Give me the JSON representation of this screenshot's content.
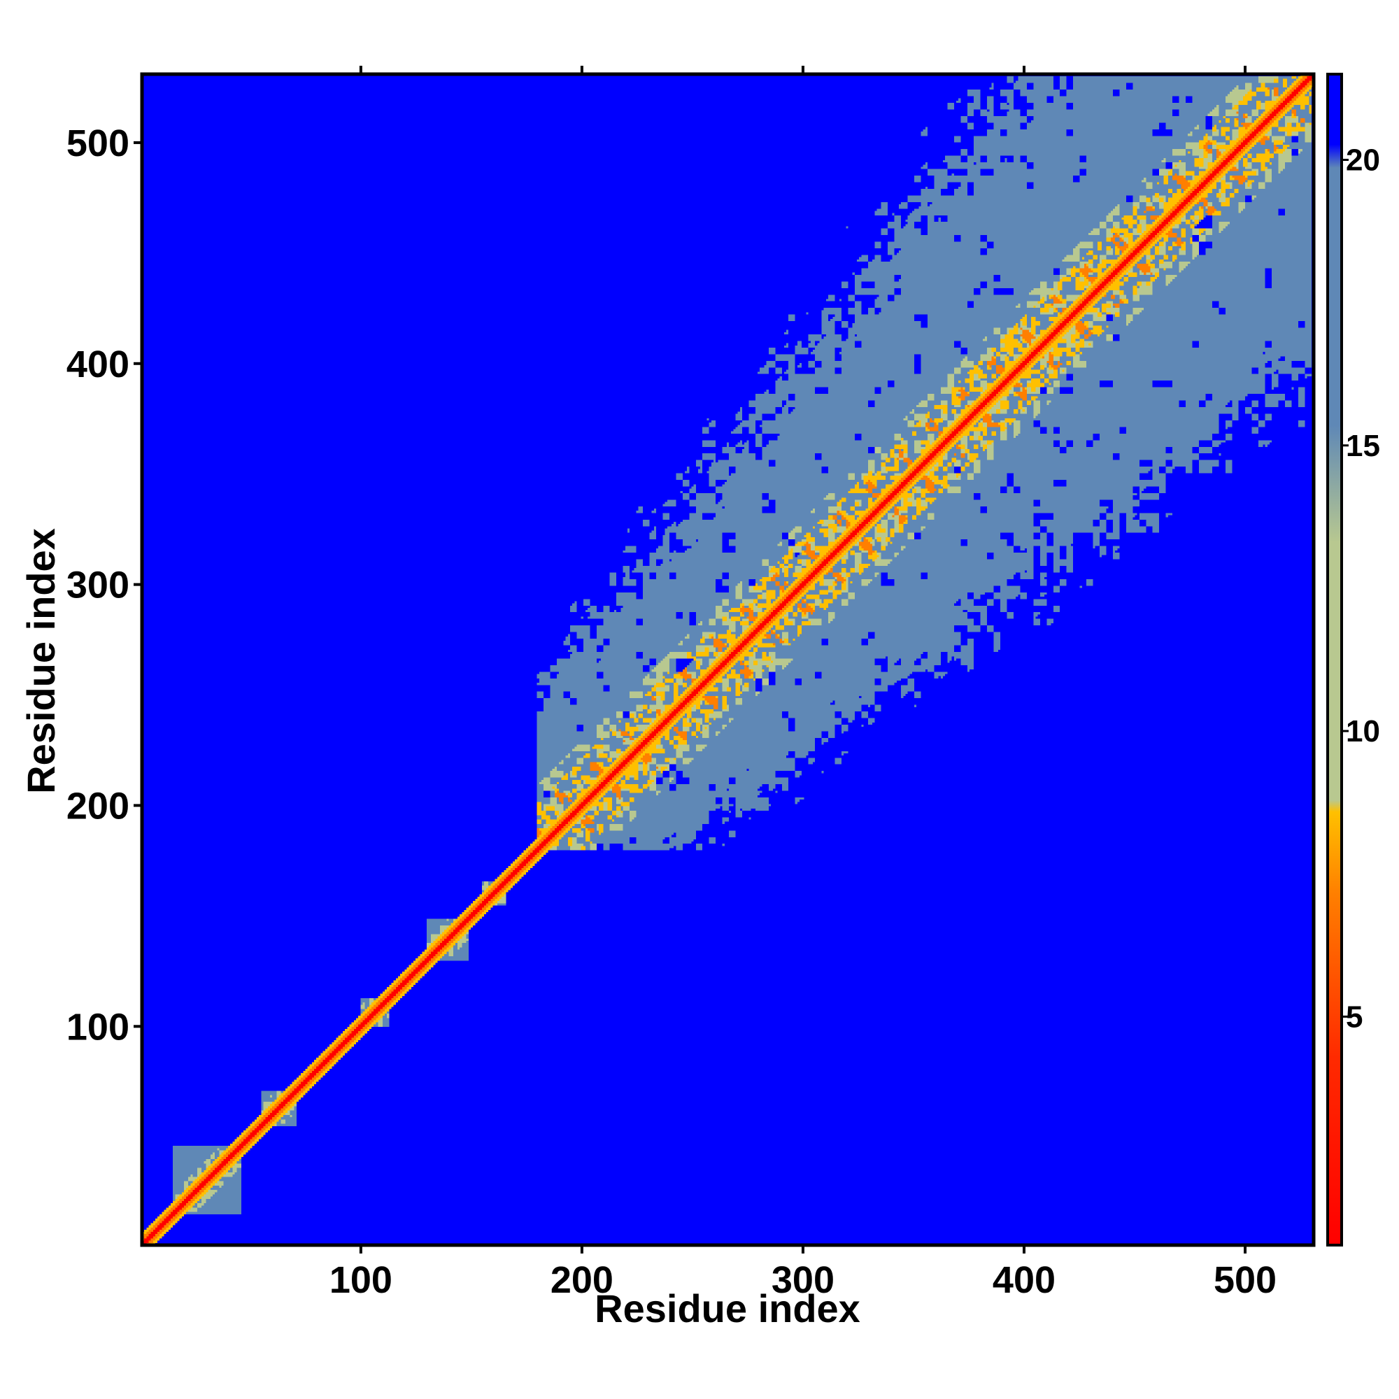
{
  "chart_data": {
    "type": "heatmap",
    "title": "",
    "xlabel": "Residue index",
    "ylabel": "Residue index",
    "xlim": [
      1,
      531
    ],
    "ylim": [
      1,
      531
    ],
    "x_ticks": [
      100,
      200,
      300,
      400,
      500
    ],
    "y_ticks": [
      100,
      200,
      300,
      400,
      500
    ],
    "colorbar": {
      "range": [
        1,
        21.5
      ],
      "ticks": [
        5,
        10,
        15,
        20
      ],
      "colors": {
        "low": "#ff0000",
        "mid_low": "#ff7f00",
        "mid": "#ffc000",
        "mid_high": "#b8c890",
        "high": "#5f88b6",
        "background": "#0000ff"
      }
    },
    "description_of_values": "pairwise residue distance map; diagonal band values ~1-5, helical contacts ~5-10 in orange/yellow, structured region beyond residue ~180 ~10-20 in steel blue, rest saturated blue (>20)",
    "structured_blocks": [
      {
        "start": 15,
        "end": 45
      },
      {
        "start": 55,
        "end": 70
      },
      {
        "start": 100,
        "end": 112
      },
      {
        "start": 130,
        "end": 148
      },
      {
        "start": 155,
        "end": 165
      },
      {
        "start": 180,
        "end": 530
      }
    ]
  }
}
